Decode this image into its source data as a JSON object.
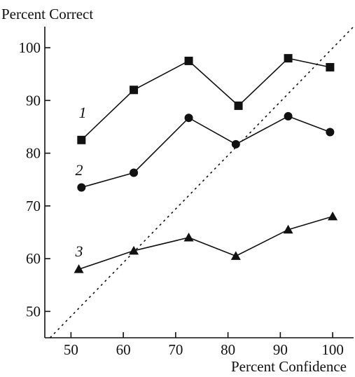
{
  "chart_data": {
    "type": "line",
    "ylabel": "Percent Correct",
    "xlabel": "Percent Confidence",
    "xlim": [
      45,
      104
    ],
    "ylim": [
      45,
      104
    ],
    "x_ticks": [
      50,
      60,
      70,
      80,
      90,
      100
    ],
    "y_ticks": [
      50,
      60,
      70,
      80,
      90,
      100
    ],
    "reference_line": {
      "style": "dotted",
      "points": [
        [
          46,
          45
        ],
        [
          104,
          104
        ]
      ]
    },
    "series": [
      {
        "name": "1",
        "marker": "square",
        "x": [
          52,
          62,
          72.5,
          82,
          91.5,
          99.5
        ],
        "y": [
          82.5,
          92,
          97.5,
          89,
          98,
          96.3
        ]
      },
      {
        "name": "2",
        "marker": "circle",
        "x": [
          52,
          62,
          72.5,
          81.5,
          91.5,
          99.5
        ],
        "y": [
          73.5,
          76.3,
          86.7,
          81.7,
          87,
          84
        ]
      },
      {
        "name": "3",
        "marker": "triangle",
        "x": [
          51.5,
          62,
          72.5,
          81.5,
          91.5,
          100
        ],
        "y": [
          58,
          61.5,
          64,
          60.5,
          65.5,
          68
        ]
      }
    ]
  }
}
